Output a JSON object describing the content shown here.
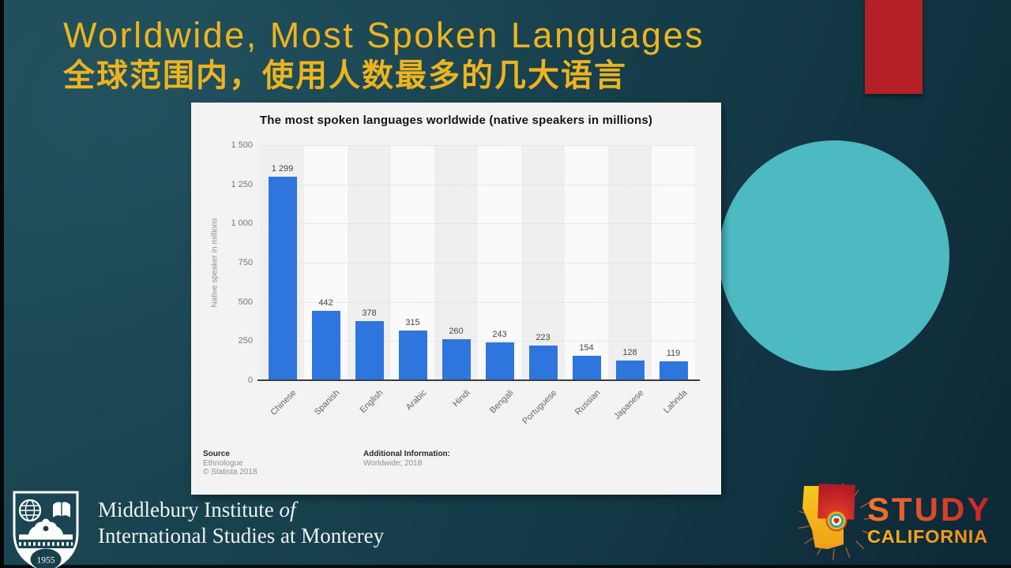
{
  "slide": {
    "title_line1": "Worldwide, Most Spoken Languages",
    "title_line2": "全球范围内，使用人数最多的几大语言"
  },
  "chart_data": {
    "type": "bar",
    "title": "The most spoken languages worldwide (native speakers in millions)",
    "categories": [
      "Chinese",
      "Spanish",
      "English",
      "Arabic",
      "Hindi",
      "Bengali",
      "Portuguese",
      "Russian",
      "Japanese",
      "Lahnda"
    ],
    "values": [
      1299,
      442,
      378,
      315,
      260,
      243,
      223,
      154,
      128,
      119
    ],
    "value_labels": [
      "1 299",
      "442",
      "378",
      "315",
      "260",
      "243",
      "223",
      "154",
      "128",
      "119"
    ],
    "xlabel": "",
    "ylabel": "Native speaker in millions",
    "ylim": [
      0,
      1500
    ],
    "yticks": [
      0,
      250,
      500,
      750,
      1000,
      1250,
      1500
    ],
    "ytick_labels": [
      "0",
      "250",
      "500",
      "750",
      "1 000",
      "1 250",
      "1 500"
    ],
    "grid": true,
    "legend": "none",
    "bar_color": "#2e76dd",
    "band_colors": [
      "#efefef",
      "#fafafa"
    ],
    "footer": {
      "source_heading": "Source",
      "source_lines": [
        "Ethnologue",
        "© Statista 2018"
      ],
      "additional_heading": "Additional Information:",
      "additional_lines": [
        "Worldwide; 2018"
      ]
    }
  },
  "footer": {
    "middlebury": {
      "line1_normal": "Middlebury Institute ",
      "line1_italic": "of",
      "line2": "International Studies at Monterey",
      "badge_year": "1955"
    },
    "study_california": {
      "line1": "STUDY",
      "line2": "CALIFORNIA"
    }
  },
  "decor": {
    "title_gold": "#edb41e",
    "accent_red": "#b32025",
    "accent_teal_circle": "#4db9c1"
  }
}
